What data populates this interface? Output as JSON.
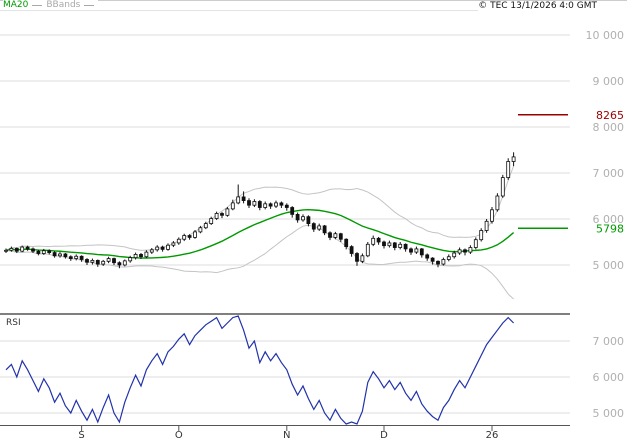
{
  "header": {
    "copyright": "© TEC 13/1/2026 4:0 GMT"
  },
  "legend": {
    "ma_label": "MA20",
    "bbands_label": "BBands"
  },
  "rsi_panel": {
    "title": "RSI"
  },
  "colors": {
    "ma": "#009900",
    "bbands": "#c4c4c4",
    "candle": "#111111",
    "rsi": "#2233aa",
    "grid": "#dcdcdc",
    "axis_text": "#b0b0b0",
    "frame": "#555555",
    "x_label": "#333333",
    "level_resistance": "#990000",
    "level_support": "#009900"
  },
  "chart_data": {
    "type": "candlestick",
    "title": "",
    "subpanels": [
      "price+MA20+BBands",
      "RSI"
    ],
    "price_axis": {
      "ticks": [
        {
          "value": 10000,
          "label": "10 000"
        },
        {
          "value": 9000,
          "label": "9 000"
        },
        {
          "value": 8000,
          "label": "8 000"
        },
        {
          "value": 7000,
          "label": "7 000"
        },
        {
          "value": 6000,
          "label": "6 000"
        },
        {
          "value": 5000,
          "label": "5 000"
        }
      ]
    },
    "levels": [
      {
        "value": 8265,
        "label": "8265",
        "color_key": "level_resistance"
      },
      {
        "value": 5798,
        "label": "5798",
        "color_key": "level_support"
      }
    ],
    "x_axis": {
      "ticks": [
        {
          "index": 14,
          "label": "S"
        },
        {
          "index": 32,
          "label": "O"
        },
        {
          "index": 52,
          "label": "N"
        },
        {
          "index": 70,
          "label": "D"
        },
        {
          "index": 90,
          "label": "26"
        }
      ]
    },
    "indicators": {
      "ma_period": 20,
      "bband_period": 20,
      "bband_stddev": 2,
      "rsi_period": 14
    },
    "candles": [
      [
        5300,
        5360,
        5260,
        5320
      ],
      [
        5320,
        5400,
        5290,
        5360
      ],
      [
        5360,
        5380,
        5260,
        5300
      ],
      [
        5300,
        5420,
        5280,
        5390
      ],
      [
        5390,
        5420,
        5310,
        5350
      ],
      [
        5350,
        5380,
        5260,
        5300
      ],
      [
        5300,
        5330,
        5210,
        5250
      ],
      [
        5250,
        5350,
        5220,
        5310
      ],
      [
        5310,
        5340,
        5230,
        5270
      ],
      [
        5270,
        5300,
        5160,
        5200
      ],
      [
        5200,
        5280,
        5160,
        5240
      ],
      [
        5240,
        5260,
        5140,
        5180
      ],
      [
        5180,
        5210,
        5090,
        5140
      ],
      [
        5140,
        5230,
        5100,
        5190
      ],
      [
        5190,
        5210,
        5070,
        5120
      ],
      [
        5120,
        5150,
        5000,
        5060
      ],
      [
        5060,
        5140,
        5010,
        5100
      ],
      [
        5100,
        5120,
        4960,
        5020
      ],
      [
        5020,
        5110,
        4980,
        5080
      ],
      [
        5080,
        5180,
        5040,
        5140
      ],
      [
        5140,
        5160,
        5000,
        5050
      ],
      [
        5050,
        5080,
        4930,
        5000
      ],
      [
        5000,
        5120,
        4970,
        5090
      ],
      [
        5090,
        5200,
        5050,
        5160
      ],
      [
        5160,
        5270,
        5120,
        5230
      ],
      [
        5230,
        5260,
        5130,
        5180
      ],
      [
        5180,
        5320,
        5150,
        5280
      ],
      [
        5280,
        5370,
        5240,
        5330
      ],
      [
        5330,
        5430,
        5290,
        5390
      ],
      [
        5390,
        5420,
        5290,
        5340
      ],
      [
        5340,
        5470,
        5310,
        5430
      ],
      [
        5430,
        5520,
        5390,
        5480
      ],
      [
        5480,
        5600,
        5440,
        5560
      ],
      [
        5560,
        5680,
        5520,
        5640
      ],
      [
        5640,
        5670,
        5550,
        5600
      ],
      [
        5600,
        5760,
        5570,
        5720
      ],
      [
        5720,
        5850,
        5690,
        5810
      ],
      [
        5810,
        5940,
        5780,
        5900
      ],
      [
        5900,
        6050,
        5870,
        6010
      ],
      [
        6010,
        6160,
        5980,
        6120
      ],
      [
        6120,
        6150,
        6020,
        6080
      ],
      [
        6080,
        6260,
        6050,
        6220
      ],
      [
        6220,
        6420,
        6190,
        6350
      ],
      [
        6350,
        6750,
        6320,
        6480
      ],
      [
        6480,
        6600,
        6340,
        6400
      ],
      [
        6400,
        6450,
        6240,
        6300
      ],
      [
        6300,
        6430,
        6260,
        6380
      ],
      [
        6380,
        6410,
        6190,
        6250
      ],
      [
        6250,
        6380,
        6210,
        6330
      ],
      [
        6330,
        6360,
        6220,
        6280
      ],
      [
        6280,
        6400,
        6240,
        6350
      ],
      [
        6350,
        6380,
        6240,
        6300
      ],
      [
        6300,
        6340,
        6180,
        6250
      ],
      [
        6250,
        6280,
        6030,
        6100
      ],
      [
        6100,
        6140,
        5920,
        5980
      ],
      [
        5980,
        6100,
        5940,
        6050
      ],
      [
        6050,
        6080,
        5840,
        5900
      ],
      [
        5900,
        5930,
        5720,
        5780
      ],
      [
        5780,
        5900,
        5740,
        5850
      ],
      [
        5850,
        5870,
        5650,
        5700
      ],
      [
        5700,
        5730,
        5540,
        5600
      ],
      [
        5600,
        5720,
        5560,
        5680
      ],
      [
        5680,
        5700,
        5500,
        5560
      ],
      [
        5560,
        5580,
        5340,
        5400
      ],
      [
        5400,
        5430,
        5180,
        5250
      ],
      [
        5250,
        5280,
        4980,
        5080
      ],
      [
        5080,
        5250,
        5040,
        5200
      ],
      [
        5200,
        5500,
        5170,
        5450
      ],
      [
        5450,
        5640,
        5410,
        5580
      ],
      [
        5580,
        5610,
        5440,
        5500
      ],
      [
        5500,
        5530,
        5360,
        5420
      ],
      [
        5420,
        5530,
        5380,
        5480
      ],
      [
        5480,
        5500,
        5320,
        5380
      ],
      [
        5380,
        5500,
        5340,
        5450
      ],
      [
        5450,
        5470,
        5290,
        5350
      ],
      [
        5350,
        5380,
        5220,
        5280
      ],
      [
        5280,
        5400,
        5240,
        5350
      ],
      [
        5350,
        5370,
        5160,
        5220
      ],
      [
        5220,
        5250,
        5090,
        5150
      ],
      [
        5150,
        5170,
        5010,
        5080
      ],
      [
        5080,
        5100,
        4950,
        5020
      ],
      [
        5020,
        5160,
        4990,
        5120
      ],
      [
        5120,
        5230,
        5080,
        5180
      ],
      [
        5180,
        5310,
        5140,
        5260
      ],
      [
        5260,
        5380,
        5220,
        5330
      ],
      [
        5330,
        5360,
        5210,
        5280
      ],
      [
        5280,
        5430,
        5240,
        5380
      ],
      [
        5380,
        5600,
        5340,
        5550
      ],
      [
        5550,
        5800,
        5510,
        5750
      ],
      [
        5750,
        6000,
        5700,
        5950
      ],
      [
        5950,
        6260,
        5900,
        6200
      ],
      [
        6200,
        6560,
        6160,
        6500
      ],
      [
        6500,
        6960,
        6460,
        6900
      ],
      [
        6900,
        7320,
        6850,
        7250
      ],
      [
        7250,
        7450,
        7150,
        7350
      ]
    ],
    "rsi": [
      6200,
      6350,
      6000,
      6450,
      6200,
      5900,
      5600,
      5950,
      5700,
      5300,
      5550,
      5200,
      5000,
      5350,
      5050,
      4800,
      5100,
      4750,
      5150,
      5500,
      5000,
      4750,
      5300,
      5700,
      6050,
      5750,
      6200,
      6450,
      6650,
      6350,
      6700,
      6850,
      7050,
      7200,
      6900,
      7150,
      7300,
      7450,
      7550,
      7650,
      7350,
      7500,
      7650,
      7750,
      7300,
      6800,
      7000,
      6400,
      6700,
      6450,
      6650,
      6400,
      6200,
      5800,
      5500,
      5750,
      5400,
      5100,
      5350,
      5000,
      4800,
      5100,
      4850,
      4600,
      4750,
      4600,
      5050,
      5850,
      6150,
      5950,
      5700,
      5900,
      5650,
      5850,
      5550,
      5350,
      5600,
      5250,
      5050,
      4900,
      4800,
      5150,
      5350,
      5650,
      5900,
      5700,
      6000,
      6300,
      6600,
      6900,
      7100,
      7300,
      7500,
      7650,
      7500
    ],
    "rsi_axis": {
      "ticks": [
        {
          "value": 7000,
          "label": "7 000"
        },
        {
          "value": 6000,
          "label": "6 000"
        },
        {
          "value": 5000,
          "label": "5 000"
        }
      ]
    }
  }
}
